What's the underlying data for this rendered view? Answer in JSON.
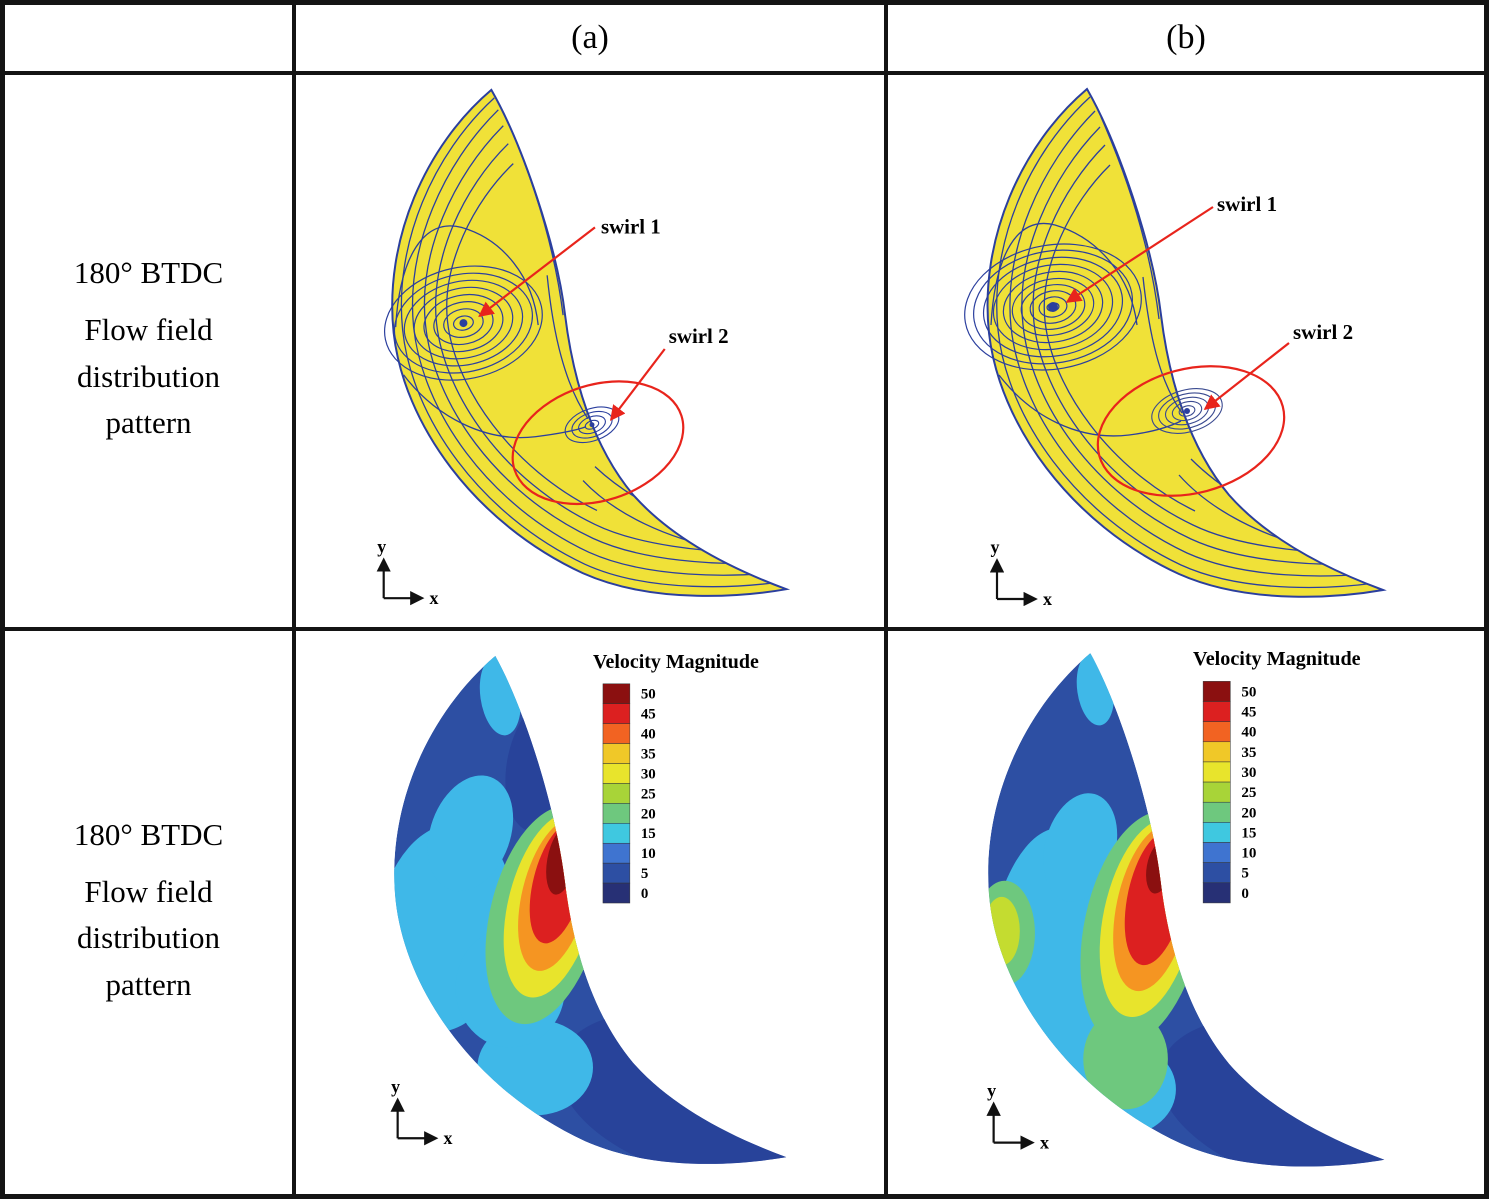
{
  "figure": {
    "header": {
      "col_a": "(a)",
      "col_b": "(b)"
    },
    "rows": {
      "streamline": {
        "title": "180° BTDC",
        "subtitle": "Flow field distribution pattern"
      },
      "contour": {
        "title": "180° BTDC",
        "subtitle": "Flow field distribution pattern"
      }
    }
  },
  "annotations": {
    "swirl1": "swirl 1",
    "swirl2": "swirl 2",
    "arrow_color": "#e8241c"
  },
  "axes": {
    "x_label": "x",
    "y_label": "y"
  },
  "legend": {
    "title": "Velocity Magnitude",
    "values": [
      "50",
      "45",
      "40",
      "35",
      "30",
      "25",
      "20",
      "15",
      "10",
      "5",
      "0"
    ],
    "colors": [
      "#8b1010",
      "#dc2020",
      "#f26322",
      "#f0c828",
      "#e8e42c",
      "#a8d438",
      "#6ec87e",
      "#3fc8e0",
      "#3f74d0",
      "#2d4fa3",
      "#273075"
    ]
  },
  "colors": {
    "streamline_fill": "#f0e138",
    "streamline_stroke": "#2b3f9e",
    "contour_base": "#2d4fa3"
  },
  "chart_data": {
    "type": "heatmap",
    "panels": [
      "(a)",
      "(b)"
    ],
    "colorbar": {
      "title": "Velocity Magnitude",
      "ticks": [
        50,
        45,
        40,
        35,
        30,
        25,
        20,
        15,
        10,
        5,
        0
      ]
    },
    "annotated_features": [
      "swirl 1",
      "swirl 2"
    ]
  }
}
